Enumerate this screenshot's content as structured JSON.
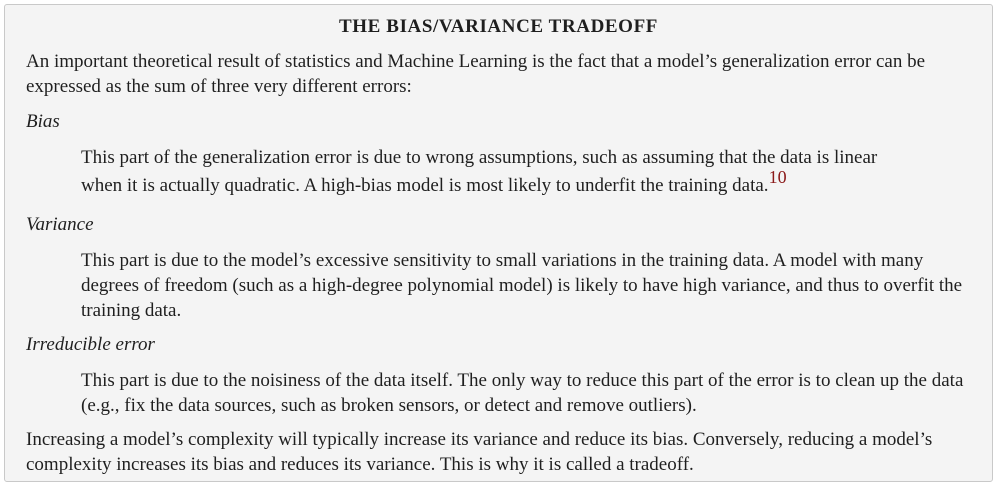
{
  "sidebar": {
    "title": "THE BIAS/VARIANCE TRADEOFF",
    "intro": "An important theoretical result of statistics and Machine Learning is the fact that a model’s generalization error can be expressed as the sum of three very different errors:",
    "terms": [
      {
        "term": "Bias",
        "definition_line1": "This part of the generalization error is due to wrong assumptions, such as assuming that the data is linear",
        "definition_line2": "when it is actually quadratic. A high-bias model is most likely to underfit the training data.",
        "footnote": "10"
      },
      {
        "term": "Variance",
        "definition": "This part is due to the model’s excessive sensitivity to small variations in the training data. A model with many degrees of freedom (such as a high-degree polynomial model) is likely to have high variance, and thus to overfit the training data."
      },
      {
        "term": "Irreducible error",
        "definition": "This part is due to the noisiness of the data itself. The only way to reduce this part of the error is to clean up the data (e.g., fix the data sources, such as broken sensors, or detect and remove outliers)."
      }
    ],
    "conclusion": "Increasing a model’s complexity will typically increase its variance and reduce its bias. Conversely, reducing a model’s complexity increases its bias and reduces its variance. This is why it is called a tradeoff."
  }
}
